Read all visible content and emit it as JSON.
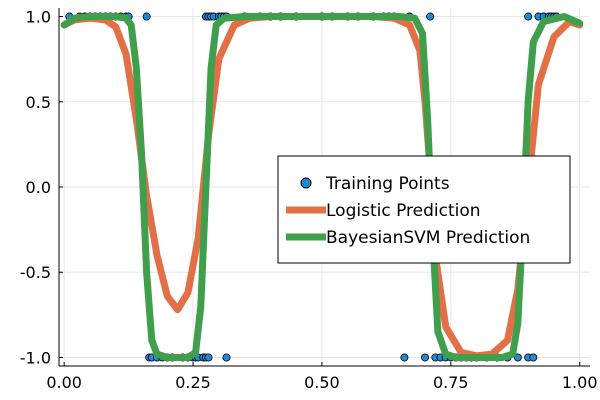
{
  "chart_data": {
    "type": "scatter",
    "xlim": [
      -0.01,
      1.02
    ],
    "ylim": [
      -1.05,
      1.05
    ],
    "xticks": [
      0.0,
      0.25,
      0.5,
      0.75,
      1.0
    ],
    "xtick_labels": [
      "0.00",
      "0.25",
      "0.50",
      "0.75",
      "1.00"
    ],
    "yticks": [
      -1.0,
      -0.5,
      0.0,
      0.5,
      1.0
    ],
    "ytick_labels": [
      "-1.0",
      "-0.5",
      "0.0",
      "0.5",
      "1.0"
    ],
    "grid": true,
    "legend_position": "center-right",
    "series": [
      {
        "name": "Training Points",
        "kind": "scatter",
        "color": "#1f8ad6",
        "points": [
          [
            0.01,
            1
          ],
          [
            0.03,
            1
          ],
          [
            0.04,
            1
          ],
          [
            0.05,
            1
          ],
          [
            0.06,
            1
          ],
          [
            0.07,
            1
          ],
          [
            0.08,
            1
          ],
          [
            0.09,
            1
          ],
          [
            0.1,
            1
          ],
          [
            0.11,
            1
          ],
          [
            0.12,
            1
          ],
          [
            0.125,
            1
          ],
          [
            0.165,
            -1
          ],
          [
            0.17,
            -1
          ],
          [
            0.18,
            -1
          ],
          [
            0.19,
            -1
          ],
          [
            0.2,
            -1
          ],
          [
            0.21,
            -1
          ],
          [
            0.23,
            -1
          ],
          [
            0.24,
            -1
          ],
          [
            0.25,
            -1
          ],
          [
            0.255,
            -1
          ],
          [
            0.26,
            -1
          ],
          [
            0.27,
            -1
          ],
          [
            0.275,
            -1
          ],
          [
            0.28,
            -1
          ],
          [
            0.315,
            -1
          ],
          [
            0.16,
            1
          ],
          [
            0.275,
            1
          ],
          [
            0.28,
            1
          ],
          [
            0.285,
            1
          ],
          [
            0.29,
            1
          ],
          [
            0.3,
            1
          ],
          [
            0.305,
            1
          ],
          [
            0.31,
            1
          ],
          [
            0.315,
            1
          ],
          [
            0.35,
            1
          ],
          [
            0.38,
            1
          ],
          [
            0.4,
            1
          ],
          [
            0.42,
            1
          ],
          [
            0.45,
            1
          ],
          [
            0.5,
            1
          ],
          [
            0.52,
            1
          ],
          [
            0.55,
            1
          ],
          [
            0.57,
            1
          ],
          [
            0.6,
            1
          ],
          [
            0.62,
            1
          ],
          [
            0.63,
            1
          ],
          [
            0.64,
            1
          ],
          [
            0.67,
            1
          ],
          [
            0.71,
            1
          ],
          [
            0.66,
            -1
          ],
          [
            0.7,
            -1
          ],
          [
            0.72,
            -1
          ],
          [
            0.73,
            -1
          ],
          [
            0.74,
            -1
          ],
          [
            0.75,
            -1
          ],
          [
            0.76,
            -1
          ],
          [
            0.77,
            -1
          ],
          [
            0.78,
            -1
          ],
          [
            0.79,
            -1
          ],
          [
            0.8,
            -1
          ],
          [
            0.82,
            -1
          ],
          [
            0.84,
            -1
          ],
          [
            0.86,
            -1
          ],
          [
            0.88,
            -1
          ],
          [
            0.9,
            -1
          ],
          [
            0.91,
            -1
          ],
          [
            0.9,
            1
          ],
          [
            0.92,
            1
          ],
          [
            0.93,
            1
          ],
          [
            0.94,
            1
          ],
          [
            0.945,
            1
          ],
          [
            0.95,
            1
          ],
          [
            0.955,
            1
          ]
        ]
      },
      {
        "name": "Logistic Prediction",
        "kind": "line",
        "color": "#e26f46",
        "points": [
          [
            0.0,
            0.95
          ],
          [
            0.02,
            0.98
          ],
          [
            0.05,
            0.99
          ],
          [
            0.08,
            0.98
          ],
          [
            0.1,
            0.94
          ],
          [
            0.12,
            0.78
          ],
          [
            0.14,
            0.4
          ],
          [
            0.16,
            -0.05
          ],
          [
            0.18,
            -0.4
          ],
          [
            0.2,
            -0.64
          ],
          [
            0.22,
            -0.72
          ],
          [
            0.24,
            -0.62
          ],
          [
            0.26,
            -0.3
          ],
          [
            0.28,
            0.3
          ],
          [
            0.3,
            0.75
          ],
          [
            0.33,
            0.95
          ],
          [
            0.36,
            0.99
          ],
          [
            0.4,
            1.0
          ],
          [
            0.5,
            1.0
          ],
          [
            0.6,
            1.0
          ],
          [
            0.64,
            0.99
          ],
          [
            0.67,
            0.95
          ],
          [
            0.69,
            0.8
          ],
          [
            0.7,
            0.5
          ],
          [
            0.71,
            0.1
          ],
          [
            0.72,
            -0.4
          ],
          [
            0.74,
            -0.82
          ],
          [
            0.77,
            -0.97
          ],
          [
            0.8,
            -0.99
          ],
          [
            0.83,
            -0.98
          ],
          [
            0.86,
            -0.9
          ],
          [
            0.88,
            -0.6
          ],
          [
            0.9,
            0.0
          ],
          [
            0.92,
            0.6
          ],
          [
            0.95,
            0.88
          ],
          [
            0.98,
            0.97
          ],
          [
            1.0,
            0.95
          ]
        ]
      },
      {
        "name": "BayesianSVM Prediction",
        "kind": "line",
        "color": "#3f9f4b",
        "points": [
          [
            0.0,
            0.95
          ],
          [
            0.02,
            0.99
          ],
          [
            0.05,
            1.0
          ],
          [
            0.1,
            1.0
          ],
          [
            0.12,
            0.99
          ],
          [
            0.13,
            0.95
          ],
          [
            0.14,
            0.7
          ],
          [
            0.15,
            0.2
          ],
          [
            0.16,
            -0.5
          ],
          [
            0.17,
            -0.9
          ],
          [
            0.18,
            -0.98
          ],
          [
            0.2,
            -1.0
          ],
          [
            0.24,
            -1.0
          ],
          [
            0.255,
            -0.97
          ],
          [
            0.265,
            -0.7
          ],
          [
            0.275,
            0.0
          ],
          [
            0.285,
            0.7
          ],
          [
            0.295,
            0.95
          ],
          [
            0.31,
            0.99
          ],
          [
            0.35,
            1.0
          ],
          [
            0.5,
            1.0
          ],
          [
            0.65,
            1.0
          ],
          [
            0.68,
            0.99
          ],
          [
            0.695,
            0.9
          ],
          [
            0.705,
            0.4
          ],
          [
            0.715,
            -0.3
          ],
          [
            0.725,
            -0.85
          ],
          [
            0.74,
            -0.98
          ],
          [
            0.76,
            -1.0
          ],
          [
            0.85,
            -1.0
          ],
          [
            0.87,
            -0.98
          ],
          [
            0.88,
            -0.8
          ],
          [
            0.89,
            -0.2
          ],
          [
            0.9,
            0.5
          ],
          [
            0.91,
            0.85
          ],
          [
            0.93,
            0.97
          ],
          [
            0.97,
            1.0
          ],
          [
            1.0,
            0.96
          ]
        ]
      }
    ]
  }
}
